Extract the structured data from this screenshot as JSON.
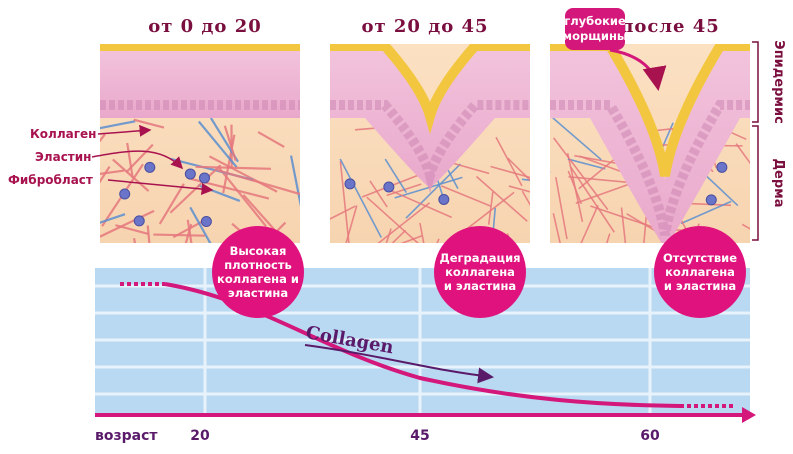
{
  "stages": [
    {
      "title": "от 0 до 20",
      "note": [
        "Высокая",
        "плотность",
        "коллагена и",
        "эластина"
      ]
    },
    {
      "title": "от 20 до 45",
      "note": [
        "Деградация",
        "коллагена",
        "и эластина"
      ]
    },
    {
      "title": "после 45",
      "note": [
        "Отсутствие",
        "коллагена",
        "и эластина"
      ]
    }
  ],
  "wrinkle_label": [
    "глубокие",
    "морщины"
  ],
  "layers": {
    "epidermis": "Эпидермис",
    "dermis": "Дерма"
  },
  "parts": [
    "Коллаген",
    "Эластин",
    "Фибробласт"
  ],
  "curve_label": "Collagen",
  "axis": {
    "title": "возраст",
    "ticks": [
      "20",
      "45",
      "60"
    ]
  }
}
